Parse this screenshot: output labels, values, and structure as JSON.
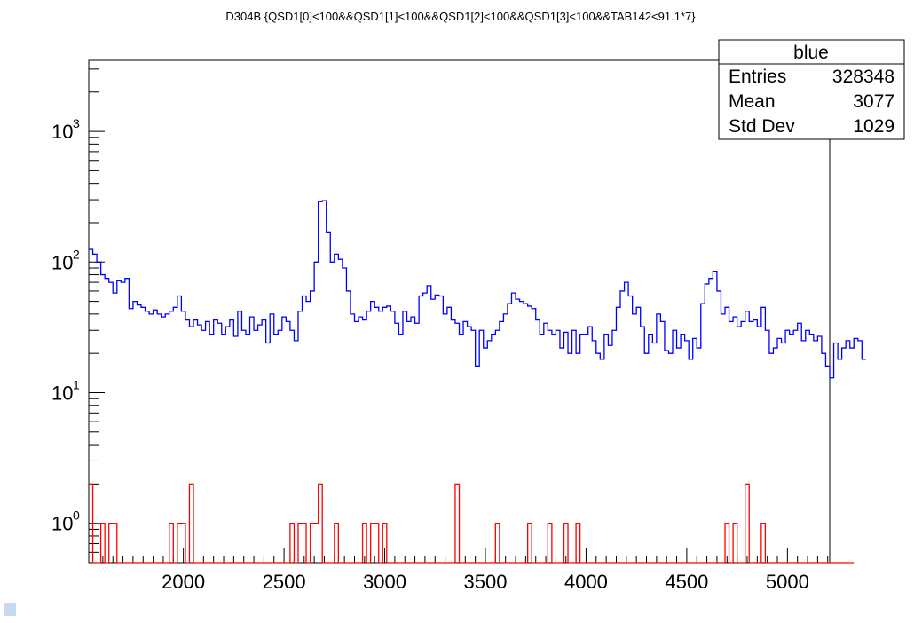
{
  "chart_data": {
    "type": "histogram",
    "title": "D304B {QSD1[0]<100&&QSD1[1]<100&&QSD1[2]<100&&QSD1[3]<100&&TAB142<91.1*7}",
    "xlabel": "",
    "ylabel": "",
    "x_range": [
      1530,
      5210
    ],
    "y_range": [
      0.5,
      3500
    ],
    "y_scale": "log",
    "bin_width": 20,
    "x_ticks": [
      2000,
      2500,
      3000,
      3500,
      4000,
      4500,
      5000
    ],
    "x_tick_labels": [
      "2000",
      "2500",
      "3000",
      "3500",
      "4000",
      "4500",
      "5000"
    ],
    "y_ticks": [
      {
        "value": 1,
        "base": "10",
        "exp": "0"
      },
      {
        "value": 10,
        "base": "10",
        "exp": "1"
      },
      {
        "value": 100,
        "base": "10",
        "exp": "2"
      },
      {
        "value": 1000,
        "base": "10",
        "exp": "3"
      }
    ],
    "stats_box": {
      "title": "blue",
      "rows": [
        {
          "label": "Entries",
          "value": "328348"
        },
        {
          "label": "Mean",
          "value": "3077"
        },
        {
          "label": "Std Dev",
          "value": "1029"
        }
      ]
    },
    "series": [
      {
        "color": "#0000ff",
        "x_start": 1530,
        "values": [
          125,
          115,
          100,
          80,
          75,
          70,
          58,
          72,
          70,
          75,
          44,
          50,
          47,
          45,
          42,
          40,
          43,
          40,
          38,
          40,
          42,
          45,
          55,
          42,
          36,
          32,
          36,
          33,
          30,
          35,
          28,
          36,
          34,
          28,
          32,
          36,
          27,
          42,
          30,
          28,
          38,
          30,
          33,
          36,
          24,
          40,
          28,
          30,
          38,
          35,
          30,
          25,
          42,
          55,
          50,
          60,
          100,
          290,
          295,
          170,
          100,
          115,
          105,
          90,
          60,
          40,
          35,
          38,
          36,
          42,
          50,
          45,
          42,
          45,
          46,
          42,
          34,
          28,
          42,
          35,
          38,
          34,
          55,
          58,
          66,
          52,
          56,
          55,
          40,
          45,
          36,
          34,
          28,
          35,
          32,
          30,
          16,
          30,
          22,
          25,
          28,
          30,
          35,
          40,
          48,
          58,
          52,
          50,
          48,
          46,
          44,
          36,
          28,
          34,
          30,
          28,
          30,
          22,
          29,
          20,
          30,
          20,
          28,
          28,
          32,
          25,
          20,
          18,
          28,
          23,
          30,
          45,
          60,
          70,
          55,
          40,
          45,
          32,
          20,
          28,
          24,
          40,
          35,
          21,
          20,
          30,
          22,
          28,
          25,
          18,
          26,
          22,
          48,
          68,
          75,
          85,
          60,
          40,
          45,
          35,
          38,
          32,
          35,
          42,
          35,
          36,
          32,
          45,
          30,
          20,
          22,
          26,
          24,
          30,
          28,
          30,
          34,
          25,
          30,
          28,
          25,
          27,
          20,
          16,
          13,
          24,
          18,
          22,
          25,
          22,
          26,
          25,
          18
        ]
      },
      {
        "color": "#ff0000",
        "x_start": 1530,
        "values": [
          2,
          0,
          0,
          1,
          0,
          1,
          1,
          0,
          0,
          0,
          0,
          0,
          0,
          0,
          0,
          0,
          0,
          0,
          0,
          0,
          1,
          0,
          1,
          1,
          0,
          2,
          0,
          0,
          0,
          0,
          0,
          0,
          0,
          0,
          0,
          0,
          0,
          0,
          0,
          0,
          0,
          0,
          0,
          0,
          0,
          0,
          0,
          0,
          0,
          0,
          1,
          0,
          1,
          1,
          0,
          1,
          1,
          2,
          0,
          0,
          0,
          1,
          0,
          0,
          0,
          0,
          0,
          0,
          1,
          0,
          1,
          1,
          0,
          1,
          0,
          0,
          0,
          0,
          0,
          0,
          0,
          0,
          0,
          0,
          0,
          0,
          0,
          0,
          0,
          0,
          0,
          2,
          0,
          0,
          0,
          0,
          0,
          0,
          0,
          0,
          0,
          1,
          0,
          0,
          0,
          0,
          0,
          0,
          0,
          1,
          0,
          0,
          0,
          0,
          1,
          0,
          0,
          0,
          1,
          0,
          0,
          1,
          0,
          0,
          0,
          0,
          0,
          0,
          0,
          0,
          0,
          0,
          0,
          0,
          0,
          0,
          0,
          0,
          0,
          0,
          0,
          0,
          0,
          0,
          0,
          0,
          0,
          0,
          0,
          0,
          0,
          0,
          0,
          0,
          0,
          0,
          0,
          0,
          1,
          0,
          1,
          0,
          0,
          2,
          0,
          0,
          0,
          1,
          0,
          0,
          0,
          0,
          0,
          0,
          0,
          0,
          0,
          0,
          0,
          0,
          0,
          0,
          0,
          0,
          0,
          0,
          0,
          0,
          0,
          0
        ]
      }
    ]
  }
}
